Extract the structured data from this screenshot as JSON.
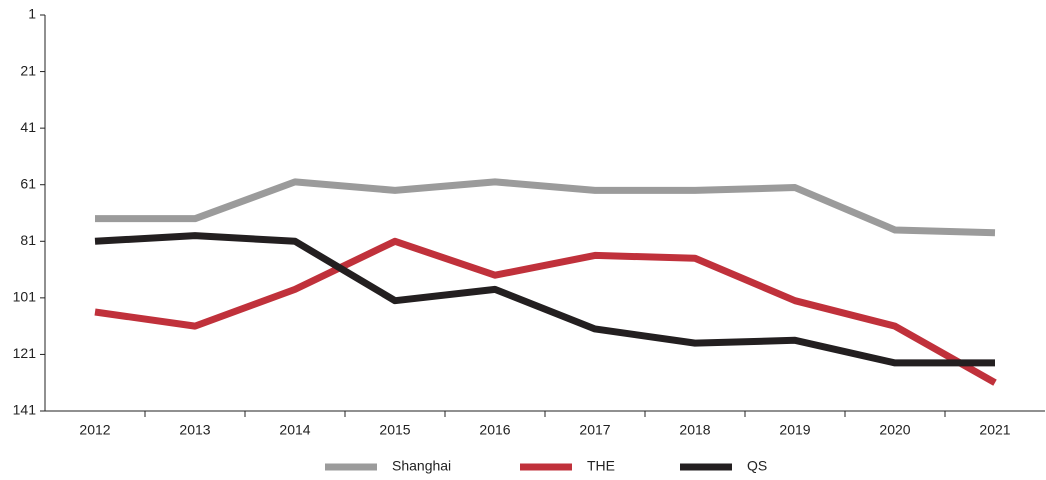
{
  "chart_data": {
    "type": "line",
    "categories": [
      "2012",
      "2013",
      "2014",
      "2015",
      "2016",
      "2017",
      "2018",
      "2019",
      "2020",
      "2021"
    ],
    "series": [
      {
        "name": "Shanghai",
        "color": "#9b9b9b",
        "values": [
          73,
          73,
          60,
          63,
          60,
          63,
          63,
          62,
          77,
          78
        ]
      },
      {
        "name": "THE",
        "color": "#c0313b",
        "values": [
          106,
          111,
          98,
          81,
          93,
          86,
          87,
          102,
          111,
          131
        ]
      },
      {
        "name": "QS",
        "color": "#231f20",
        "values": [
          81,
          79,
          81,
          102,
          98,
          112,
          117,
          116,
          124,
          124
        ]
      }
    ],
    "ylim": [
      1,
      141
    ],
    "yticks": [
      1,
      21,
      41,
      61,
      81,
      101,
      121,
      141
    ],
    "y_inverted": true,
    "grid": false,
    "legend": "bottom"
  }
}
